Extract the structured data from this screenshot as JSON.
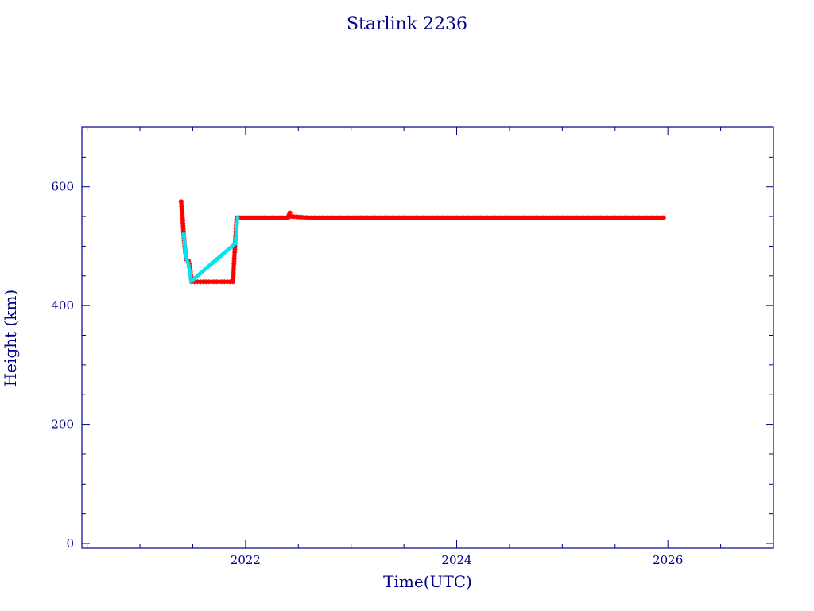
{
  "chart_data": {
    "type": "scatter",
    "title": "Starlink 2236",
    "xlabel": "Time(UTC)",
    "ylabel": "Height (km)",
    "xlim": [
      2020.45,
      2027.0
    ],
    "ylim": [
      -8,
      700
    ],
    "x_ticks_major": [
      2022,
      2024,
      2026
    ],
    "x_tick_labels": [
      "2022",
      "2024",
      "2026"
    ],
    "y_ticks_major": [
      0,
      200,
      400,
      600
    ],
    "y_tick_labels": [
      "0",
      "200",
      "400",
      "600"
    ],
    "grid": false,
    "colors": {
      "axes": "#00008b",
      "series_a": "#ff0000",
      "series_b": "#00e5ee"
    },
    "series": [
      {
        "color": "#ff0000",
        "marker": "star",
        "x": [
          2021.39,
          2021.4,
          2021.41,
          2021.42,
          2021.43,
          2021.44,
          2021.46,
          2021.475,
          2021.49,
          2021.6,
          2021.7,
          2021.8,
          2021.88,
          2021.885,
          2021.89,
          2021.895,
          2021.9,
          2021.905,
          2021.91,
          2021.915,
          2021.92,
          2022.0,
          2022.2,
          2022.4,
          2022.41,
          2022.42,
          2022.43,
          2022.6,
          2022.8,
          2023.0,
          2023.5,
          2024.0,
          2024.5,
          2025.0,
          2025.5,
          2025.96
        ],
        "y": [
          575,
          555,
          530,
          505,
          490,
          478,
          475,
          462,
          440,
          440,
          440,
          440,
          440,
          455,
          470,
          485,
          500,
          515,
          530,
          545,
          548,
          548,
          548,
          548,
          552,
          556,
          550,
          548,
          548,
          548,
          548,
          548,
          548,
          548,
          548,
          548
        ]
      },
      {
        "color": "#00e5ee",
        "marker": "dot",
        "x": [
          2021.415,
          2021.43,
          2021.445,
          2021.46,
          2021.475,
          2021.48,
          2021.485,
          2021.905,
          2021.91,
          2021.915,
          2021.92,
          2021.925
        ],
        "y": [
          520,
          490,
          478,
          468,
          455,
          447,
          441,
          505,
          520,
          530,
          540,
          547
        ]
      }
    ]
  }
}
